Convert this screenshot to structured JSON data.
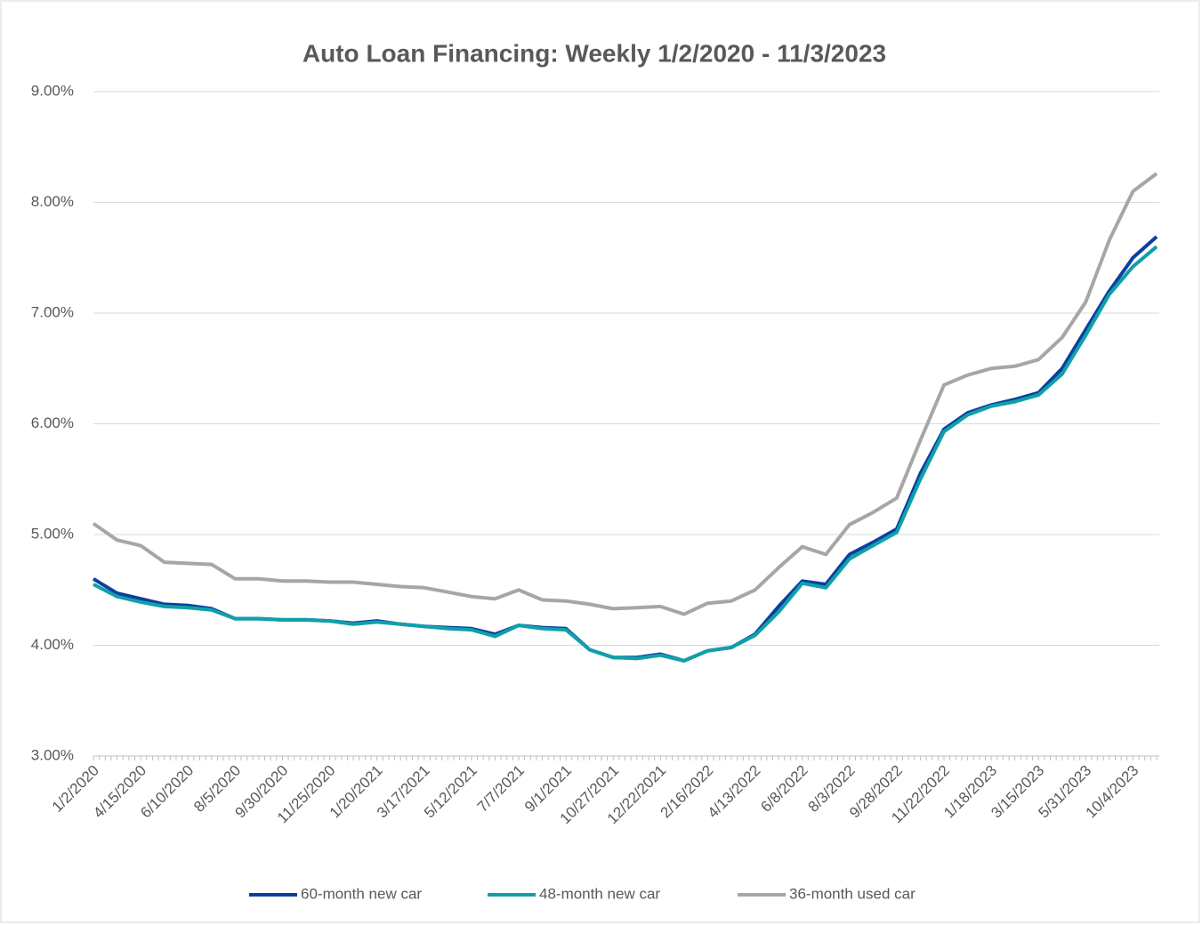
{
  "chart_data": {
    "type": "line",
    "title": "Auto Loan Financing: Weekly 1/2/2020 - 11/3/2023",
    "categories": [
      "1/2/2020",
      null,
      "4/15/2020",
      null,
      "6/10/2020",
      null,
      "8/5/2020",
      null,
      "9/30/2020",
      null,
      "11/25/2020",
      null,
      "1/20/2021",
      null,
      "3/17/2021",
      null,
      "5/12/2021",
      null,
      "7/7/2021",
      null,
      "9/1/2021",
      null,
      "10/27/2021",
      null,
      "12/22/2021",
      null,
      "2/16/2022",
      null,
      "4/13/2022",
      null,
      "6/8/2022",
      null,
      "8/3/2022",
      null,
      "9/28/2022",
      null,
      "11/22/2022",
      null,
      "1/18/2023",
      null,
      "3/15/2023",
      null,
      "5/31/2023",
      null,
      "10/4/2023",
      null
    ],
    "series": [
      {
        "name": "60-month new car",
        "color": "#0b3fa0",
        "values": [
          4.6,
          4.47,
          4.42,
          4.37,
          4.36,
          4.33,
          4.24,
          4.24,
          4.23,
          4.23,
          4.22,
          4.2,
          4.22,
          4.19,
          4.17,
          4.16,
          4.15,
          4.1,
          4.18,
          4.16,
          4.15,
          3.96,
          3.89,
          3.89,
          3.92,
          3.86,
          3.95,
          3.98,
          4.1,
          4.35,
          4.58,
          4.55,
          4.82,
          4.93,
          5.05,
          5.55,
          5.95,
          6.1,
          6.17,
          6.22,
          6.28,
          6.5,
          6.85,
          7.2,
          7.5,
          7.69
        ]
      },
      {
        "name": "48-month new car",
        "color": "#10a0a8",
        "values": [
          4.55,
          4.44,
          4.39,
          4.35,
          4.34,
          4.32,
          4.24,
          4.24,
          4.23,
          4.23,
          4.22,
          4.19,
          4.21,
          4.19,
          4.17,
          4.15,
          4.14,
          4.08,
          4.18,
          4.15,
          4.14,
          3.96,
          3.89,
          3.88,
          3.91,
          3.86,
          3.95,
          3.98,
          4.09,
          4.3,
          4.56,
          4.52,
          4.78,
          4.9,
          5.02,
          5.5,
          5.93,
          6.08,
          6.16,
          6.2,
          6.26,
          6.45,
          6.8,
          7.17,
          7.42,
          7.6
        ]
      },
      {
        "name": "36-month used car",
        "color": "#a6a6a6",
        "values": [
          5.1,
          4.95,
          4.9,
          4.75,
          4.74,
          4.73,
          4.6,
          4.6,
          4.58,
          4.58,
          4.57,
          4.57,
          4.55,
          4.53,
          4.52,
          4.48,
          4.44,
          4.42,
          4.5,
          4.41,
          4.4,
          4.37,
          4.33,
          4.34,
          4.35,
          4.28,
          4.38,
          4.4,
          4.5,
          4.7,
          4.89,
          4.82,
          5.09,
          5.2,
          5.33,
          5.85,
          6.35,
          6.44,
          6.5,
          6.52,
          6.58,
          6.78,
          7.1,
          7.66,
          8.1,
          8.26
        ]
      }
    ],
    "ylim": [
      3,
      9
    ],
    "yticks": [
      {
        "value": 3,
        "label": "3.00%"
      },
      {
        "value": 4,
        "label": "4.00%"
      },
      {
        "value": 5,
        "label": "5.00%"
      },
      {
        "value": 6,
        "label": "6.00%"
      },
      {
        "value": 7,
        "label": "7.00%"
      },
      {
        "value": 8,
        "label": "8.00%"
      },
      {
        "value": 9,
        "label": "9.00%"
      }
    ],
    "grid": true,
    "legend": "bottom"
  }
}
